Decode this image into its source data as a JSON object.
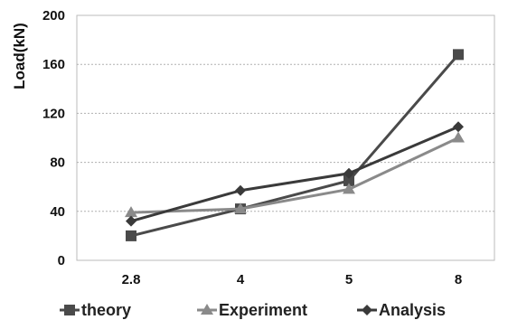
{
  "chart_data": {
    "type": "line",
    "categories": [
      "2.8",
      "4",
      "5",
      "8"
    ],
    "series": [
      {
        "name": "theory",
        "values": [
          20,
          42,
          65,
          168
        ],
        "color": "#4a4a4a",
        "marker": "square"
      },
      {
        "name": "Experiment",
        "values": [
          39,
          42,
          58,
          100
        ],
        "color": "#8a8a8a",
        "marker": "triangle"
      },
      {
        "name": "Analysis",
        "values": [
          32,
          57,
          71,
          109
        ],
        "color": "#3a3a3a",
        "marker": "diamond"
      }
    ],
    "title": "",
    "xlabel": "",
    "ylabel": "Load(kN)",
    "ylim": [
      0,
      200
    ],
    "yticks": [
      0,
      40,
      80,
      120,
      160,
      200
    ],
    "grid": "horizontal-dotted",
    "legend_position": "bottom"
  }
}
